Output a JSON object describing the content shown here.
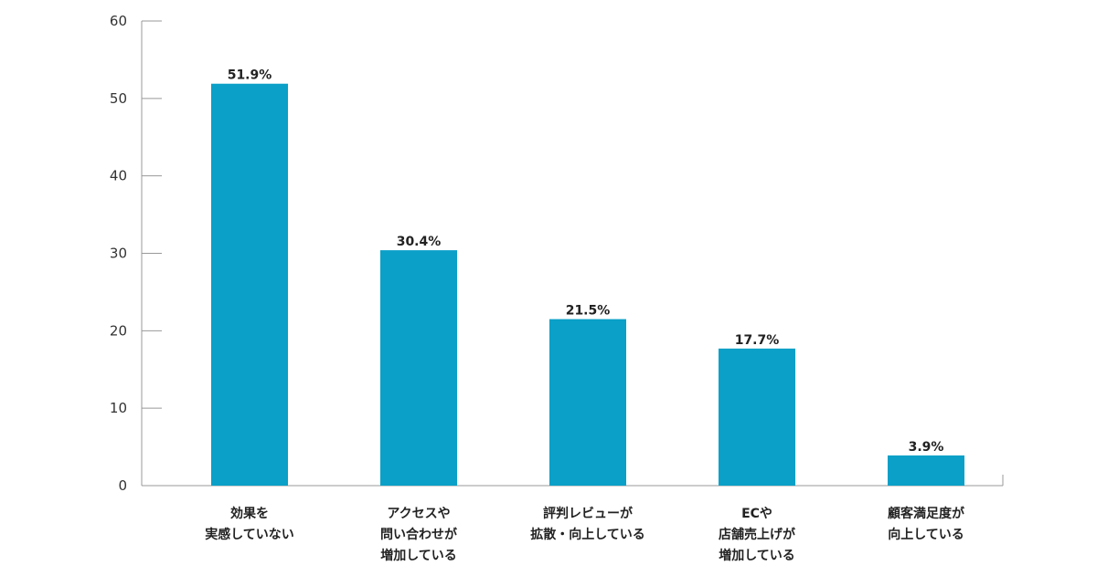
{
  "chart_data": {
    "type": "bar",
    "categories": [
      [
        "効果を",
        "実感していない"
      ],
      [
        "アクセスや",
        "問い合わせが",
        "増加している"
      ],
      [
        "評判レビューが",
        "拡散・向上している"
      ],
      [
        "ECや",
        "店舗売上げが",
        "増加している"
      ],
      [
        "顧客満足度が",
        "向上している"
      ]
    ],
    "values": [
      51.9,
      30.4,
      21.5,
      17.7,
      3.9
    ],
    "value_labels": [
      "51.9%",
      "30.4%",
      "21.5%",
      "17.7%",
      "3.9%"
    ],
    "ylim": [
      0,
      60
    ],
    "yticks": [
      0,
      10,
      20,
      30,
      40,
      50,
      60
    ],
    "title": "",
    "xlabel": "",
    "ylabel": "",
    "grid": false,
    "bar_color": "#0aa0c8"
  }
}
